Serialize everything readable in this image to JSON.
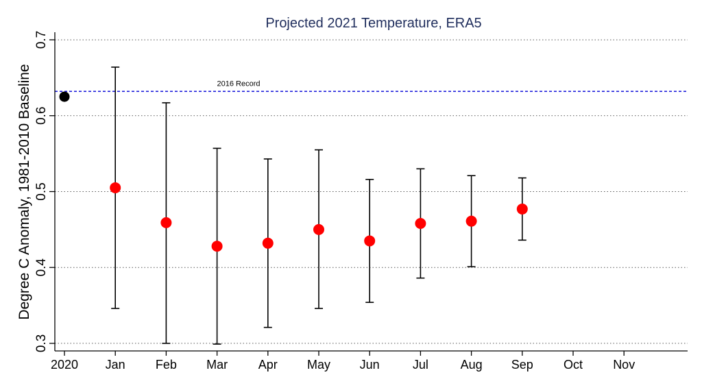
{
  "chart_data": {
    "type": "scatter",
    "title": "Projected 2021 Temperature, ERA5",
    "xlabel": "",
    "ylabel": "Degree C Anomaly, 1981-2010 Baseline",
    "ylim": [
      0.29,
      0.71
    ],
    "y_ticks": [
      "0.3",
      "0.4",
      "0.5",
      "0.6",
      "0.7"
    ],
    "grid": "horizontal dotted",
    "categories": [
      "2020",
      "Jan",
      "Feb",
      "Mar",
      "Apr",
      "May",
      "Jun",
      "Jul",
      "Aug",
      "Sep",
      "Oct",
      "Nov"
    ],
    "baseline_point": {
      "x": "2020",
      "y": 0.625,
      "color": "#000000"
    },
    "series": [
      {
        "color": "#ff0000",
        "points": [
          {
            "x": "Jan",
            "y": 0.505,
            "low": 0.346,
            "high": 0.664
          },
          {
            "x": "Feb",
            "y": 0.459,
            "low": 0.3,
            "high": 0.617
          },
          {
            "x": "Mar",
            "y": 0.428,
            "low": 0.299,
            "high": 0.557
          },
          {
            "x": "Apr",
            "y": 0.432,
            "low": 0.321,
            "high": 0.543
          },
          {
            "x": "May",
            "y": 0.45,
            "low": 0.346,
            "high": 0.555
          },
          {
            "x": "Jun",
            "y": 0.435,
            "low": 0.354,
            "high": 0.516
          },
          {
            "x": "Jul",
            "y": 0.458,
            "low": 0.386,
            "high": 0.53
          },
          {
            "x": "Aug",
            "y": 0.461,
            "low": 0.401,
            "high": 0.521
          },
          {
            "x": "Sep",
            "y": 0.477,
            "low": 0.436,
            "high": 0.518
          }
        ]
      }
    ],
    "reference_line": {
      "y": 0.632,
      "label": "2016 Record",
      "color": "#1a1adb"
    }
  }
}
